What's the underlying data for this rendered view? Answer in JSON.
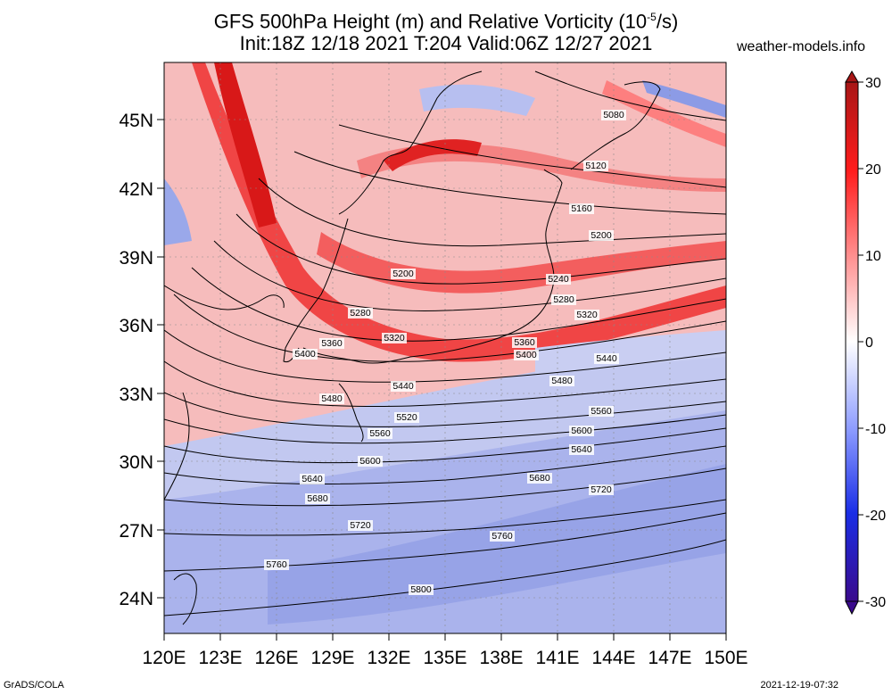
{
  "header": {
    "title_line1": "GFS 500hPa Height (m) and Relative Vorticity (10",
    "title_exp": "-5",
    "title_line1_end": "/s)",
    "title_line2": "Init:18Z 12/18 2021 T:204 Valid:06Z 12/27 2021",
    "site": "weather-models.info"
  },
  "footer": {
    "left": "GrADS/COLA",
    "right": "2021-12-19-07:32"
  },
  "map": {
    "lat_labels": [
      "45N",
      "42N",
      "39N",
      "36N",
      "33N",
      "30N",
      "27N",
      "24N"
    ],
    "lon_labels": [
      "120E",
      "123E",
      "126E",
      "129E",
      "132E",
      "135E",
      "138E",
      "141E",
      "144E",
      "147E",
      "150E"
    ],
    "contour_labels": [
      "5080",
      "5120",
      "5160",
      "5200",
      "5200",
      "5240",
      "5280",
      "5280",
      "5320",
      "5320",
      "5360",
      "5360",
      "5400",
      "5400",
      "5440",
      "5440",
      "5480",
      "5480",
      "5520",
      "5560",
      "5560",
      "5600",
      "5600",
      "5640",
      "5640",
      "5680",
      "5680",
      "5720",
      "5720",
      "5760",
      "5760",
      "5800"
    ]
  },
  "colorbar": {
    "ticks": [
      "30",
      "20",
      "10",
      "0",
      "-10",
      "-20",
      "-30"
    ],
    "colors": [
      "#b22222",
      "#ff1a1a",
      "#ff8c8c",
      "#ffffff",
      "#8c9bff",
      "#1a2ee6",
      "#3a0a8c"
    ]
  }
}
